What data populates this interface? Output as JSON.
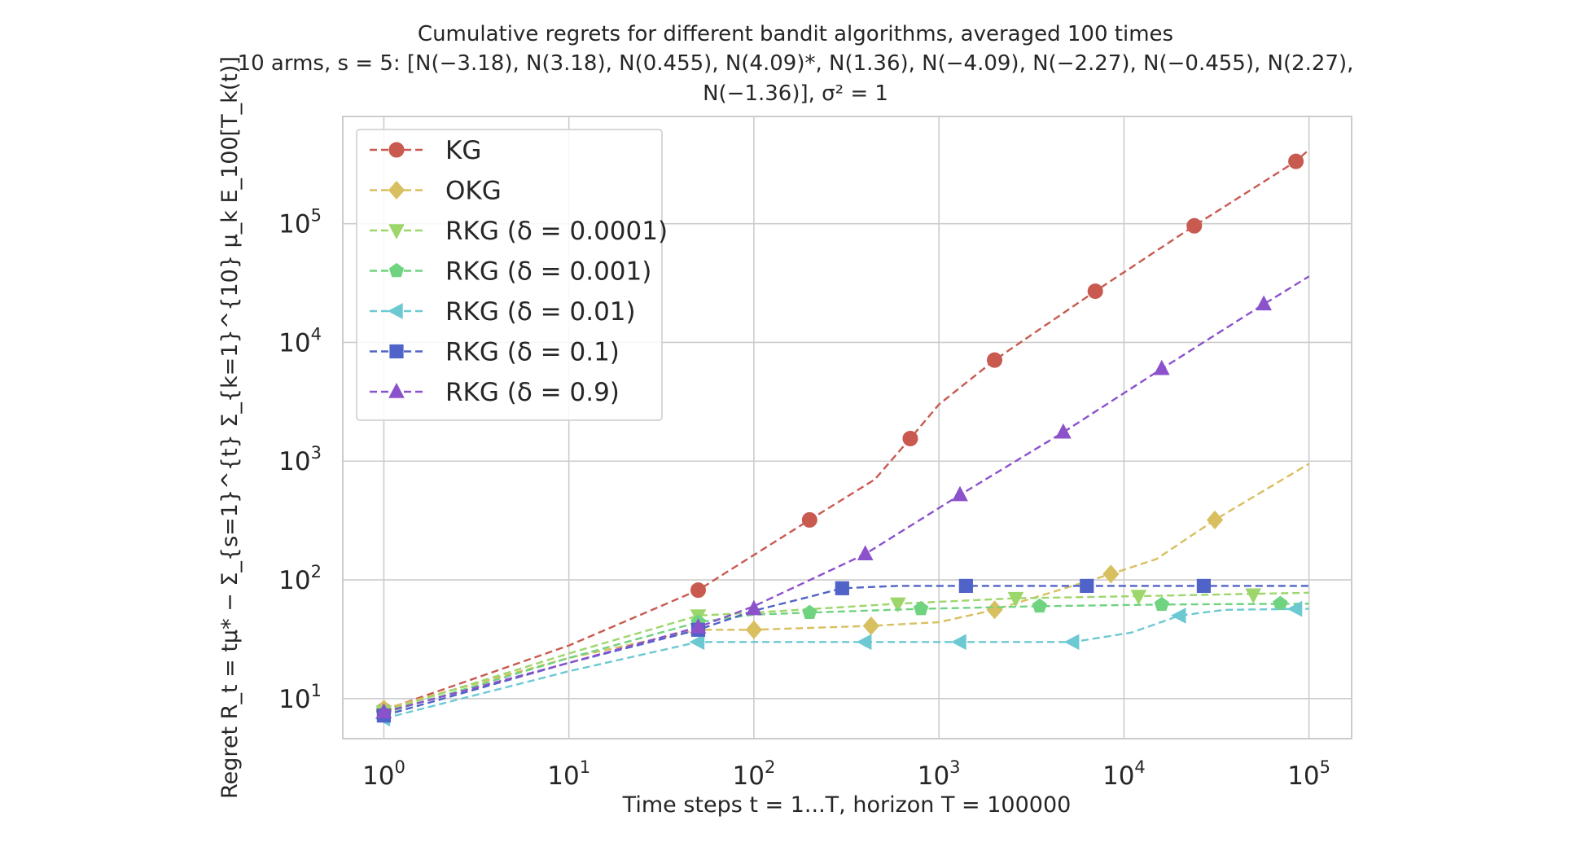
{
  "chart_data": {
    "type": "line",
    "title": "Cumulative regrets for different bandit algorithms, averaged 100 times",
    "subtitle_line1": "10 arms, s = 5: [N(−3.18), N(3.18), N(0.455), N(4.09)*, N(1.36), N(−4.09), N(−2.27), N(−0.455), N(2.27),",
    "subtitle_line2": "N(−1.36)], σ² = 1",
    "xlabel": "Time steps t = 1...T, horizon T = 100000",
    "ylabel": "Regret R_t = tμ* − Σ_{s=1}^{t} Σ_{k=1}^{10} μ_k E_100[T_k(t)]",
    "xscale": "log",
    "yscale": "log",
    "xlim": [
      0.6,
      170000
    ],
    "ylim": [
      4.6,
      800000
    ],
    "x_ticks": [
      {
        "value": 1,
        "label": "10",
        "exp": "0"
      },
      {
        "value": 10,
        "label": "10",
        "exp": "1"
      },
      {
        "value": 100,
        "label": "10",
        "exp": "2"
      },
      {
        "value": 1000,
        "label": "10",
        "exp": "3"
      },
      {
        "value": 10000,
        "label": "10",
        "exp": "4"
      },
      {
        "value": 100000,
        "label": "10",
        "exp": "5"
      }
    ],
    "y_ticks": [
      {
        "value": 10,
        "label": "10",
        "exp": "1"
      },
      {
        "value": 100,
        "label": "10",
        "exp": "2"
      },
      {
        "value": 1000,
        "label": "10",
        "exp": "3"
      },
      {
        "value": 10000,
        "label": "10",
        "exp": "4"
      },
      {
        "value": 100000,
        "label": "10",
        "exp": "5"
      }
    ],
    "grid": true,
    "legend_position": "top-left",
    "series": [
      {
        "name": "KG",
        "color": "#c85a50",
        "marker": "circle",
        "line": [
          [
            1,
            8
          ],
          [
            10,
            28
          ],
          [
            50,
            82
          ],
          [
            200,
            320
          ],
          [
            450,
            700
          ],
          [
            700,
            1550
          ],
          [
            1000,
            3000
          ],
          [
            2000,
            7100
          ],
          [
            7000,
            27000
          ],
          [
            24000,
            96000
          ],
          [
            85000,
            335000
          ],
          [
            100000,
            420000
          ]
        ],
        "markers": [
          [
            1,
            8
          ],
          [
            50,
            82
          ],
          [
            200,
            320
          ],
          [
            700,
            1550
          ],
          [
            2000,
            7100
          ],
          [
            7000,
            27000
          ],
          [
            24000,
            96000
          ],
          [
            85000,
            335000
          ]
        ]
      },
      {
        "name": "OKG",
        "color": "#d8bf5f",
        "marker": "diamond",
        "line": [
          [
            1,
            8.2
          ],
          [
            10,
            22
          ],
          [
            50,
            38
          ],
          [
            100,
            38
          ],
          [
            430,
            41
          ],
          [
            1000,
            44
          ],
          [
            2000,
            56
          ],
          [
            4000,
            78
          ],
          [
            8500,
            112
          ],
          [
            15000,
            150
          ],
          [
            31000,
            320
          ],
          [
            100000,
            950
          ]
        ],
        "markers": [
          [
            1,
            8.2
          ],
          [
            100,
            38
          ],
          [
            430,
            41
          ],
          [
            2000,
            56
          ],
          [
            8500,
            112
          ],
          [
            31000,
            320
          ]
        ]
      },
      {
        "name": "RKG (δ = 0.0001)",
        "color": "#9dd66b",
        "marker": "triangle-down",
        "line": [
          [
            1,
            7.8
          ],
          [
            10,
            24
          ],
          [
            50,
            50
          ],
          [
            100,
            53
          ],
          [
            600,
            63
          ],
          [
            2600,
            70
          ],
          [
            12000,
            73
          ],
          [
            100000,
            78
          ]
        ],
        "markers": [
          [
            1,
            7.8
          ],
          [
            50,
            50
          ],
          [
            600,
            63
          ],
          [
            2600,
            70
          ],
          [
            12000,
            73
          ],
          [
            50000,
            75
          ]
        ]
      },
      {
        "name": "RKG (δ = 0.001)",
        "color": "#6fd37f",
        "marker": "pentagon",
        "line": [
          [
            1,
            7.5
          ],
          [
            10,
            22
          ],
          [
            50,
            44
          ],
          [
            100,
            51
          ],
          [
            200,
            53
          ],
          [
            800,
            57
          ],
          [
            3500,
            60
          ],
          [
            16000,
            62
          ],
          [
            100000,
            63
          ]
        ],
        "markers": [
          [
            1,
            7.5
          ],
          [
            50,
            44
          ],
          [
            200,
            53
          ],
          [
            800,
            57
          ],
          [
            3500,
            60
          ],
          [
            16000,
            62
          ],
          [
            70000,
            63
          ]
        ]
      },
      {
        "name": "RKG (δ = 0.01)",
        "color": "#6cc9d2",
        "marker": "triangle-left",
        "line": [
          [
            1,
            6.8
          ],
          [
            10,
            17
          ],
          [
            50,
            30
          ],
          [
            100,
            30
          ],
          [
            400,
            30
          ],
          [
            1300,
            30
          ],
          [
            5300,
            30
          ],
          [
            11000,
            36
          ],
          [
            20000,
            50
          ],
          [
            35000,
            56
          ],
          [
            100000,
            57
          ]
        ],
        "markers": [
          [
            1,
            6.8
          ],
          [
            50,
            30
          ],
          [
            400,
            30
          ],
          [
            1300,
            30
          ],
          [
            5300,
            30
          ],
          [
            20000,
            50
          ],
          [
            85000,
            57
          ]
        ]
      },
      {
        "name": "RKG (δ = 0.1)",
        "color": "#5063c8",
        "marker": "square",
        "line": [
          [
            1,
            7.2
          ],
          [
            10,
            20
          ],
          [
            50,
            38
          ],
          [
            100,
            55
          ],
          [
            200,
            72
          ],
          [
            300,
            85
          ],
          [
            600,
            89
          ],
          [
            1400,
            89
          ],
          [
            6300,
            89
          ],
          [
            27000,
            89
          ],
          [
            100000,
            89
          ]
        ],
        "markers": [
          [
            1,
            7.2
          ],
          [
            50,
            38
          ],
          [
            300,
            85
          ],
          [
            1400,
            89
          ],
          [
            6300,
            89
          ],
          [
            27000,
            89
          ]
        ]
      },
      {
        "name": "RKG (δ = 0.9)",
        "color": "#8b52cc",
        "marker": "triangle-up",
        "line": [
          [
            1,
            7.7
          ],
          [
            10,
            20
          ],
          [
            50,
            40
          ],
          [
            100,
            60
          ],
          [
            400,
            165
          ],
          [
            1300,
            520
          ],
          [
            4700,
            1750
          ],
          [
            16000,
            6000
          ],
          [
            57000,
            21000
          ],
          [
            100000,
            36000
          ]
        ],
        "markers": [
          [
            1,
            7.7
          ],
          [
            50,
            40
          ],
          [
            100,
            57
          ],
          [
            400,
            165
          ],
          [
            1300,
            520
          ],
          [
            4700,
            1750
          ],
          [
            16000,
            6000
          ],
          [
            57000,
            21000
          ]
        ]
      }
    ]
  }
}
